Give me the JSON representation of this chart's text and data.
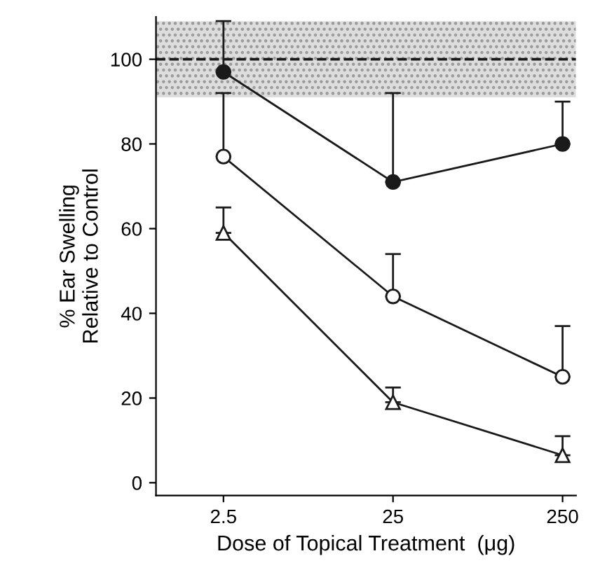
{
  "chart_data": {
    "type": "line",
    "xlabel": "Dose of Topical Treatment  (μg)",
    "ylabel": "% Ear Swelling\nRelative to Control",
    "log": "x",
    "xlim": [
      1,
      300
    ],
    "xticks": [
      2.5,
      25,
      250
    ],
    "ylim": [
      -3,
      110
    ],
    "yticks": [
      0,
      20,
      40,
      60,
      80,
      100
    ],
    "grid": false,
    "legend": false,
    "x": [
      2.5,
      25,
      250
    ],
    "series": [
      {
        "color": "#1a1a1a",
        "marker": "circle",
        "values": [
          97,
          71,
          80
        ],
        "errors": [
          [
            97,
            109
          ],
          [
            71,
            92
          ],
          [
            80,
            90
          ]
        ]
      },
      {
        "color": "#1a1a1a",
        "marker": "circle",
        "values": [
          77,
          44,
          25
        ],
        "errors": [
          [
            77,
            92
          ],
          [
            44,
            54
          ],
          [
            25,
            37
          ]
        ]
      },
      {
        "color": "#1a1a1a",
        "marker": "triangle",
        "values": [
          59,
          19,
          6.5
        ],
        "errors": [
          [
            59,
            65
          ],
          [
            19,
            22.5
          ],
          [
            6.5,
            11
          ]
        ]
      }
    ],
    "ref_lines": [
      {
        "axis": "y",
        "value": 100,
        "line_style": "dashed",
        "color": "#1a1a1a"
      }
    ],
    "bands": [
      {
        "axis": "y",
        "from": 91,
        "to": 109,
        "color": "#dddddd"
      }
    ]
  }
}
